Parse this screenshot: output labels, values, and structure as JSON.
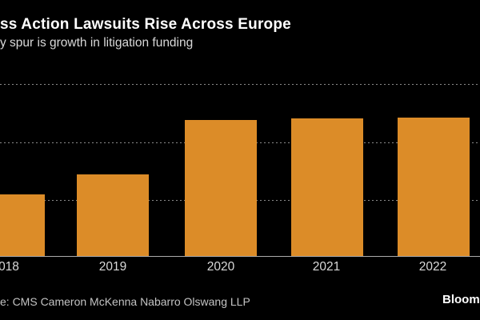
{
  "header": {
    "title": "ss Action Lawsuits Rise Across Europe",
    "subtitle": "y spur is growth in litigation funding"
  },
  "footer": {
    "source": "e: CMS Cameron McKenna Nabarro Olswang LLP",
    "watermark": "Bloomberg"
  },
  "xaxis": {
    "tick_labels": [
      "018",
      "2019",
      "2020",
      "2021",
      "2022"
    ]
  },
  "colors": {
    "background": "#000000",
    "bar": "#DC8C28",
    "title": "#FFFFFF",
    "subtitle": "#D9D9D9",
    "tick_label": "#D9D9D9",
    "source": "#C3C3C3",
    "gridline": "#8A8A8A",
    "axis_line": "#ABABAB"
  },
  "chart_data": {
    "type": "bar",
    "title": "ss Action Lawsuits Rise Across Europe",
    "subtitle": "y spur is growth in litigation funding",
    "categories": [
      "2018",
      "2019",
      "2020",
      "2021",
      "2022"
    ],
    "values": [
      54,
      71,
      119,
      120,
      121
    ],
    "ylim": [
      0,
      150
    ],
    "gridline_values": [
      50,
      100,
      150
    ],
    "gridline_style": "dotted",
    "legend_position": "none",
    "bar_color": "#DC8C28",
    "note": "Y-axis tick labels cropped outside right edge of image; values estimated from unlabeled gridlines assumed at 50-unit spacing. Title, subtitle, source and first x label are clipped at the left edge of the image; Bloomberg watermark clipped at right edge.",
    "source": "e: CMS Cameron McKenna Nabarro Olswang LLP",
    "watermark": "Bloomberg"
  }
}
